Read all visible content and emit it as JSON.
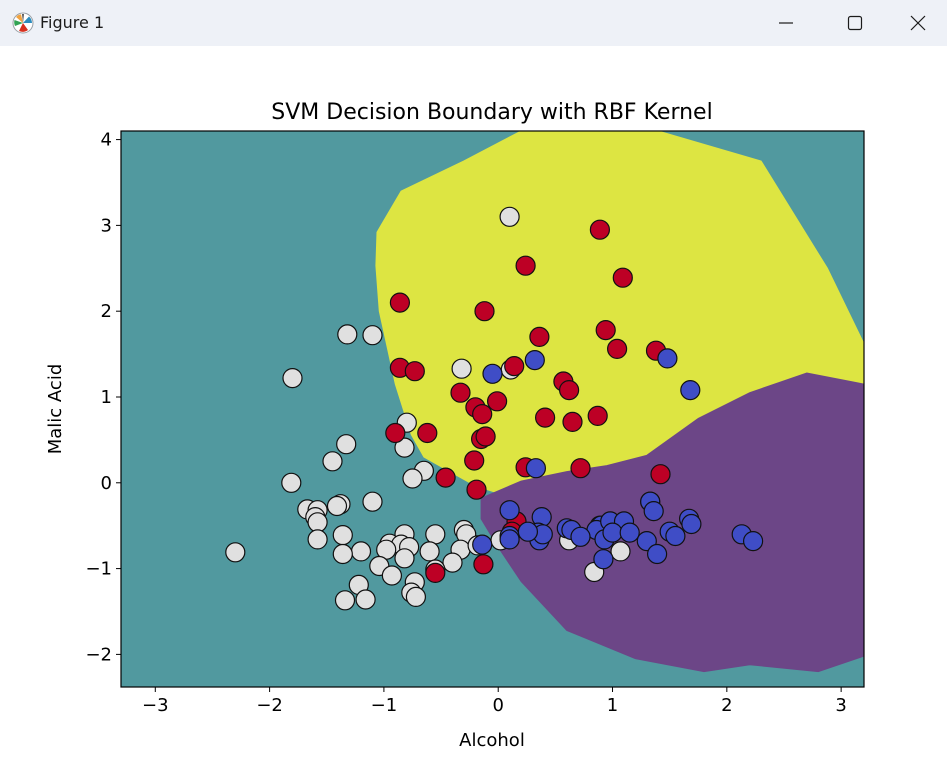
{
  "window": {
    "title": "Figure 1",
    "app_icon": "matplotlib-logo-icon",
    "controls": [
      "minimize-icon",
      "maximize-icon",
      "close-icon"
    ]
  },
  "colors": {
    "region_background": "#51999f",
    "region_class_a": "#dde542",
    "region_class_b": "#6c4687",
    "points_white": "#e0e0e0",
    "points_red": "#bd0025",
    "points_blue": "#3f4dc6",
    "edge": "#111111"
  },
  "chart_data": {
    "type": "scatter",
    "title": "SVM Decision Boundary with RBF Kernel",
    "xlabel": "Alcohol",
    "ylabel": "Malic Acid",
    "xlim": [
      -3.3,
      3.2
    ],
    "ylim": [
      -2.38,
      4.1
    ],
    "xticks": [
      -3,
      -2,
      -1,
      0,
      1,
      2,
      3
    ],
    "yticks": [
      -2,
      -1,
      0,
      1,
      2,
      3,
      4
    ],
    "xtick_labels": [
      "−3",
      "−2",
      "−1",
      "0",
      "1",
      "2",
      "3"
    ],
    "ytick_labels": [
      "−2",
      "−1",
      "0",
      "1",
      "2",
      "3",
      "4"
    ],
    "grid": false,
    "legend": "none",
    "regions": [
      {
        "class": "background",
        "color": "#51999f"
      },
      {
        "class": "yellow",
        "color": "#dde542",
        "boundary": [
          [
            -1.06,
            2.92
          ],
          [
            -0.85,
            3.4
          ],
          [
            -0.3,
            3.75
          ],
          [
            0.2,
            4.1
          ],
          [
            1.4,
            4.1
          ],
          [
            2.3,
            3.75
          ],
          [
            2.88,
            2.5
          ],
          [
            3.2,
            1.62
          ],
          [
            3.2,
            1.15
          ],
          [
            2.7,
            1.28
          ],
          [
            2.2,
            1.05
          ],
          [
            1.75,
            0.75
          ],
          [
            1.3,
            0.32
          ],
          [
            0.95,
            0.2
          ],
          [
            0.6,
            0.13
          ],
          [
            0.3,
            0.04
          ],
          [
            0.0,
            -0.12
          ],
          [
            -0.12,
            -0.07
          ],
          [
            -0.22,
            -0.02
          ],
          [
            -0.45,
            0.15
          ],
          [
            -0.65,
            0.3
          ],
          [
            -0.76,
            0.56
          ],
          [
            -0.9,
            1.15
          ],
          [
            -1.04,
            2.0
          ],
          [
            -1.07,
            2.53
          ]
        ]
      },
      {
        "class": "purple",
        "color": "#6c4687",
        "boundary": [
          [
            -0.15,
            -0.18
          ],
          [
            0.2,
            0.02
          ],
          [
            0.6,
            0.13
          ],
          [
            0.95,
            0.2
          ],
          [
            1.3,
            0.32
          ],
          [
            1.75,
            0.75
          ],
          [
            2.2,
            1.05
          ],
          [
            2.7,
            1.28
          ],
          [
            3.2,
            1.15
          ],
          [
            3.2,
            -2.02
          ],
          [
            2.8,
            -2.2
          ],
          [
            2.2,
            -2.12
          ],
          [
            1.8,
            -2.2
          ],
          [
            1.2,
            -2.05
          ],
          [
            0.6,
            -1.72
          ],
          [
            0.2,
            -1.15
          ],
          [
            0.0,
            -0.75
          ],
          [
            -0.15,
            -0.42
          ]
        ]
      }
    ],
    "series": [
      {
        "color": "#e0e0e0",
        "points": [
          [
            0.1,
            3.1
          ],
          [
            -1.32,
            1.73
          ],
          [
            -1.1,
            1.72
          ],
          [
            -1.8,
            1.22
          ],
          [
            -0.32,
            1.33
          ],
          [
            0.11,
            1.32
          ],
          [
            -0.8,
            0.7
          ],
          [
            -1.33,
            0.45
          ],
          [
            -0.82,
            0.41
          ],
          [
            -1.45,
            0.25
          ],
          [
            -0.65,
            0.14
          ],
          [
            -0.75,
            0.05
          ],
          [
            -1.81,
            0.0
          ],
          [
            -1.1,
            -0.22
          ],
          [
            -1.38,
            -0.25
          ],
          [
            -1.41,
            -0.27
          ],
          [
            -1.67,
            -0.31
          ],
          [
            -1.58,
            -0.32
          ],
          [
            -1.6,
            -0.4
          ],
          [
            -1.58,
            -0.46
          ],
          [
            -1.36,
            -0.61
          ],
          [
            -0.55,
            -0.6
          ],
          [
            -0.3,
            -0.55
          ],
          [
            -0.28,
            -0.6
          ],
          [
            -0.82,
            -0.6
          ],
          [
            -0.95,
            -0.71
          ],
          [
            -0.85,
            -0.72
          ],
          [
            -0.78,
            -0.75
          ],
          [
            -0.6,
            -0.8
          ],
          [
            -0.33,
            -0.78
          ],
          [
            -0.18,
            -0.73
          ],
          [
            0.02,
            -0.67
          ],
          [
            -1.58,
            -0.66
          ],
          [
            -1.2,
            -0.8
          ],
          [
            -1.36,
            -0.83
          ],
          [
            -0.98,
            -0.78
          ],
          [
            -0.82,
            -0.88
          ],
          [
            -1.04,
            -0.97
          ],
          [
            -0.4,
            -0.93
          ],
          [
            -0.55,
            -1.01
          ],
          [
            -0.93,
            -1.08
          ],
          [
            -1.22,
            -1.19
          ],
          [
            -0.73,
            -1.16
          ],
          [
            -0.76,
            -1.28
          ],
          [
            -0.72,
            -1.33
          ],
          [
            -1.34,
            -1.37
          ],
          [
            -1.16,
            -1.36
          ],
          [
            -2.3,
            -0.81
          ],
          [
            0.62,
            -0.67
          ],
          [
            0.84,
            -1.04
          ],
          [
            0.95,
            -0.52
          ],
          [
            1.07,
            -0.8
          ],
          [
            0.89,
            -0.5
          ],
          [
            1.33,
            -0.22
          ]
        ]
      },
      {
        "color": "#bd0025",
        "points": [
          [
            0.89,
            2.95
          ],
          [
            0.24,
            2.53
          ],
          [
            1.09,
            2.39
          ],
          [
            -0.86,
            2.1
          ],
          [
            -0.12,
            2.0
          ],
          [
            0.94,
            1.78
          ],
          [
            0.36,
            1.7
          ],
          [
            1.04,
            1.56
          ],
          [
            1.38,
            1.54
          ],
          [
            0.14,
            1.36
          ],
          [
            -0.86,
            1.34
          ],
          [
            -0.73,
            1.3
          ],
          [
            0.57,
            1.18
          ],
          [
            0.62,
            1.08
          ],
          [
            -0.33,
            1.05
          ],
          [
            -0.01,
            0.95
          ],
          [
            -0.2,
            0.88
          ],
          [
            -0.14,
            0.8
          ],
          [
            0.41,
            0.76
          ],
          [
            0.87,
            0.78
          ],
          [
            0.65,
            0.71
          ],
          [
            -0.9,
            0.58
          ],
          [
            -0.62,
            0.58
          ],
          [
            -0.15,
            0.51
          ],
          [
            -0.11,
            0.54
          ],
          [
            -0.21,
            0.26
          ],
          [
            0.24,
            0.18
          ],
          [
            0.72,
            0.17
          ],
          [
            1.42,
            0.1
          ],
          [
            -0.46,
            0.06
          ],
          [
            -0.19,
            -0.08
          ],
          [
            0.16,
            -0.45
          ],
          [
            0.12,
            -0.57
          ],
          [
            -0.13,
            -0.95
          ],
          [
            -0.55,
            -1.05
          ]
        ]
      },
      {
        "color": "#3f4dc6",
        "points": [
          [
            0.32,
            1.43
          ],
          [
            1.48,
            1.45
          ],
          [
            -0.05,
            1.27
          ],
          [
            1.68,
            1.08
          ],
          [
            0.33,
            0.17
          ],
          [
            0.1,
            -0.32
          ],
          [
            0.38,
            -0.4
          ],
          [
            0.6,
            -0.53
          ],
          [
            0.35,
            -0.58
          ],
          [
            0.64,
            -0.55
          ],
          [
            0.9,
            -0.5
          ],
          [
            0.86,
            -0.55
          ],
          [
            0.98,
            -0.45
          ],
          [
            1.1,
            -0.45
          ],
          [
            1.33,
            -0.22
          ],
          [
            1.36,
            -0.33
          ],
          [
            1.67,
            -0.42
          ],
          [
            1.69,
            -0.48
          ],
          [
            1.5,
            -0.57
          ],
          [
            1.55,
            -0.62
          ],
          [
            2.13,
            -0.6
          ],
          [
            2.23,
            -0.68
          ],
          [
            0.1,
            -0.62
          ],
          [
            0.1,
            -0.66
          ],
          [
            0.36,
            -0.67
          ],
          [
            0.39,
            -0.6
          ],
          [
            0.26,
            -0.57
          ],
          [
            0.72,
            -0.63
          ],
          [
            0.93,
            -0.66
          ],
          [
            1.0,
            -0.58
          ],
          [
            1.15,
            -0.58
          ],
          [
            1.3,
            -0.68
          ],
          [
            1.39,
            -0.83
          ],
          [
            -0.14,
            -0.72
          ],
          [
            0.92,
            -0.89
          ]
        ]
      }
    ]
  }
}
